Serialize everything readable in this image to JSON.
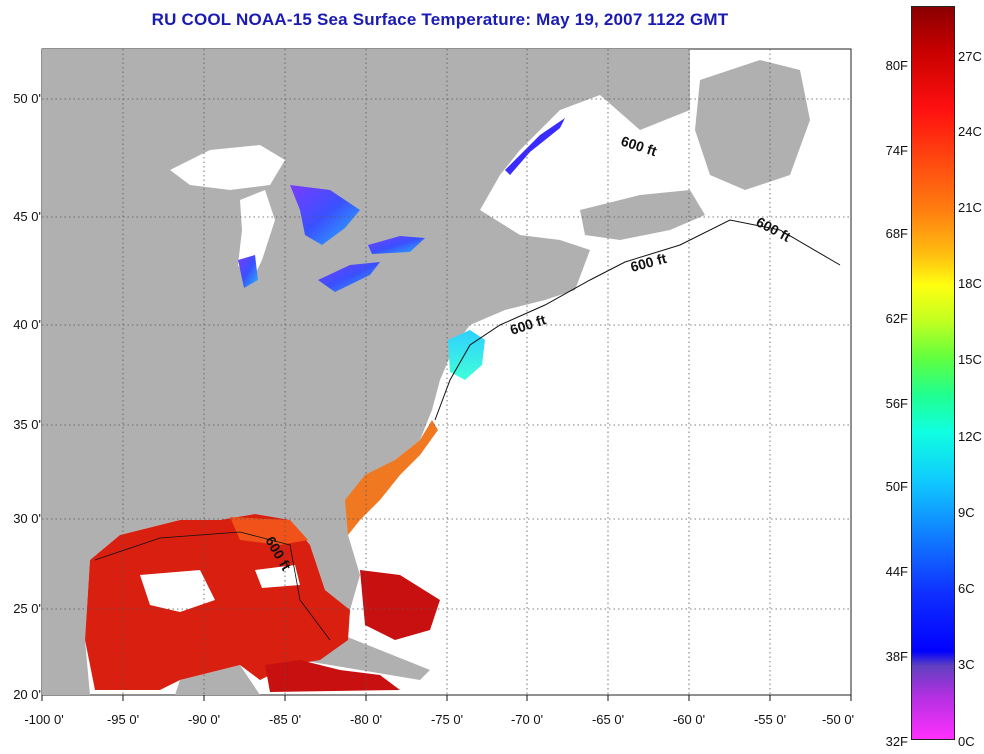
{
  "title": "RU COOL  NOAA-15  Sea Surface Temperature:  May 19, 2007 1122 GMT",
  "lat_labels": [
    "50 0'",
    "45 0'",
    "40 0'",
    "35 0'",
    "30 0'",
    "25 0'",
    "20 0'"
  ],
  "lon_labels": [
    "-100 0'",
    "-95 0'",
    "-90 0'",
    "-85 0'",
    "-80 0'",
    "-75 0'",
    "-70 0'",
    "-65 0'",
    "-60 0'",
    "-55 0'",
    "-50 0'"
  ],
  "contour_label": "600 ft",
  "colorbar": {
    "fahrenheit_labels": [
      "80F",
      "74F",
      "68F",
      "62F",
      "56F",
      "50F",
      "44F",
      "38F",
      "32F"
    ],
    "celsius_labels": [
      "27C",
      "24C",
      "21C",
      "18C",
      "15C",
      "12C",
      "9C",
      "6C",
      "3C",
      "0C"
    ]
  },
  "colors": {
    "land": "#b0b0b0",
    "ocean_no_data": "#ffffff",
    "title": "#1a1ab4",
    "warm_sst": "#d81f10",
    "cold_sst": "#2a3cff"
  }
}
